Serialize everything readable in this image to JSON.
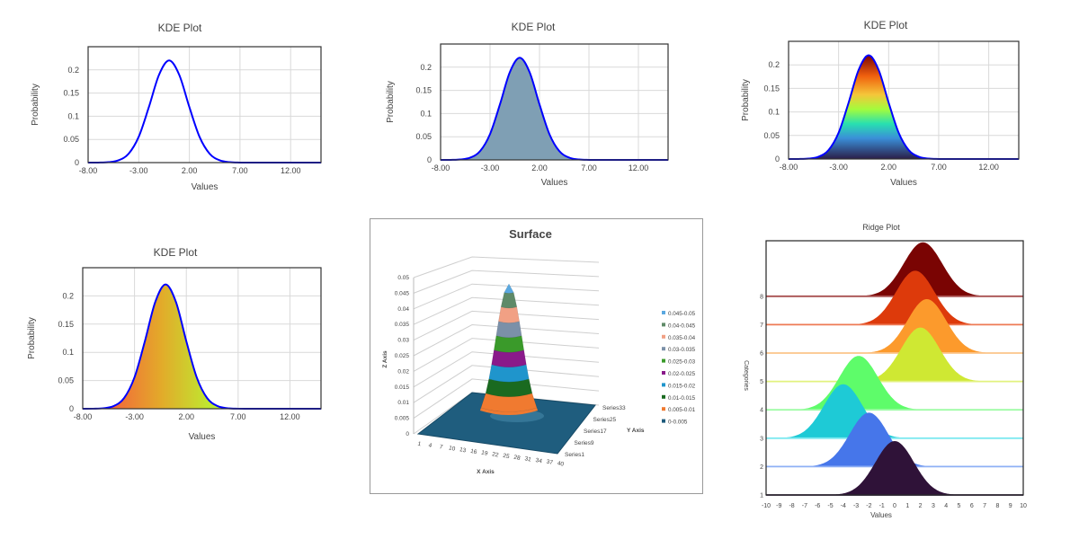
{
  "chart_data": [
    {
      "type": "line",
      "title": "KDE Plot",
      "xlabel": "Values",
      "ylabel": "Probability",
      "fill": "none",
      "line_color": "#0000ff",
      "grid": true,
      "xlim": [
        -8,
        15
      ],
      "ylim": [
        0,
        0.25
      ],
      "xticks": [
        "-8.00",
        "-3.00",
        "2.00",
        "7.00",
        "12.00"
      ],
      "yticks": [
        "0",
        "0.05",
        "0.1",
        "0.15",
        "0.2"
      ],
      "x": [
        -8,
        -7,
        -6,
        -5,
        -4,
        -3,
        -2,
        -1,
        0,
        1,
        2,
        3,
        4,
        5,
        6,
        7,
        8,
        9,
        10,
        11,
        12,
        13,
        14,
        15
      ],
      "y": [
        0,
        0.0001,
        0.0009,
        0.0049,
        0.0191,
        0.0558,
        0.1197,
        0.1892,
        0.2204,
        0.1892,
        0.1197,
        0.0558,
        0.0191,
        0.0049,
        0.0009,
        0.0001,
        0,
        0,
        0,
        0,
        0,
        0,
        0,
        0
      ]
    },
    {
      "type": "area",
      "title": "KDE Plot",
      "xlabel": "Values",
      "ylabel": "Probability",
      "fill": "solid",
      "fill_color": "#7f9fb4",
      "line_color": "#0000ff",
      "grid": true,
      "xlim": [
        -8,
        15
      ],
      "ylim": [
        0,
        0.25
      ],
      "xticks": [
        "-8.00",
        "-3.00",
        "2.00",
        "7.00",
        "12.00"
      ],
      "yticks": [
        "0",
        "0.05",
        "0.1",
        "0.15",
        "0.2"
      ],
      "x": [
        -8,
        -7,
        -6,
        -5,
        -4,
        -3,
        -2,
        -1,
        0,
        1,
        2,
        3,
        4,
        5,
        6,
        7,
        8,
        9,
        10,
        11,
        12,
        13,
        14,
        15
      ],
      "y": [
        0,
        0.0001,
        0.0009,
        0.0049,
        0.0191,
        0.0558,
        0.1197,
        0.1892,
        0.2204,
        0.1892,
        0.1197,
        0.0558,
        0.0191,
        0.0049,
        0.0009,
        0.0001,
        0,
        0,
        0,
        0,
        0,
        0,
        0,
        0
      ]
    },
    {
      "type": "area",
      "title": "KDE Plot",
      "xlabel": "Values",
      "ylabel": "Probability",
      "fill": "vertical-gradient",
      "gradient_colors": [
        "#7a0403",
        "#f0600e",
        "#f5c63a",
        "#a4fc3c",
        "#28e0b0",
        "#3a8fd8",
        "#2b1e48"
      ],
      "line_color": "#0000ff",
      "grid": true,
      "xlim": [
        -8,
        15
      ],
      "ylim": [
        0,
        0.25
      ],
      "xticks": [
        "-8.00",
        "-3.00",
        "2.00",
        "7.00",
        "12.00"
      ],
      "yticks": [
        "0",
        "0.05",
        "0.1",
        "0.15",
        "0.2"
      ],
      "x": [
        -8,
        -7,
        -6,
        -5,
        -4,
        -3,
        -2,
        -1,
        0,
        1,
        2,
        3,
        4,
        5,
        6,
        7,
        8,
        9,
        10,
        11,
        12,
        13,
        14,
        15
      ],
      "y": [
        0,
        0.0001,
        0.0009,
        0.0049,
        0.0191,
        0.0558,
        0.1197,
        0.1892,
        0.2204,
        0.1892,
        0.1197,
        0.0558,
        0.0191,
        0.0049,
        0.0009,
        0.0001,
        0,
        0,
        0,
        0,
        0,
        0,
        0,
        0
      ]
    },
    {
      "type": "area",
      "title": "KDE Plot",
      "xlabel": "Values",
      "ylabel": "Probability",
      "fill": "horizontal-gradient",
      "gradient_colors": [
        "#f26a3a",
        "#e3a92a",
        "#b9f231"
      ],
      "line_color": "#0000ff",
      "grid": true,
      "xlim": [
        -8,
        15
      ],
      "ylim": [
        0,
        0.25
      ],
      "xticks": [
        "-8.00",
        "-3.00",
        "2.00",
        "7.00",
        "12.00"
      ],
      "yticks": [
        "0",
        "0.05",
        "0.1",
        "0.15",
        "0.2"
      ],
      "x": [
        -8,
        -7,
        -6,
        -5,
        -4,
        -3,
        -2,
        -1,
        0,
        1,
        2,
        3,
        4,
        5,
        6,
        7,
        8,
        9,
        10,
        11,
        12,
        13,
        14,
        15
      ],
      "y": [
        0,
        0.0001,
        0.0009,
        0.0049,
        0.0191,
        0.0558,
        0.1197,
        0.1892,
        0.2204,
        0.1892,
        0.1197,
        0.0558,
        0.0191,
        0.0049,
        0.0009,
        0.0001,
        0,
        0,
        0,
        0,
        0,
        0,
        0,
        0
      ]
    },
    {
      "type": "surface",
      "title": "Surface",
      "xlabel": "X Axis",
      "ylabel": "Y Axis",
      "zlabel": "Z Axis",
      "zlim": [
        0,
        0.05
      ],
      "zticks": [
        "0",
        "0.005",
        "0.01",
        "0.015",
        "0.02",
        "0.025",
        "0.03",
        "0.035",
        "0.04",
        "0.045",
        "0.05"
      ],
      "xticks": [
        "1",
        "4",
        "7",
        "10",
        "13",
        "16",
        "19",
        "22",
        "25",
        "28",
        "31",
        "34",
        "37",
        "40"
      ],
      "yticks": [
        "Series1",
        "Series9",
        "Series17",
        "Series25",
        "Series33"
      ],
      "peak_z": 0.048,
      "legend": [
        {
          "label": "0.045-0.05",
          "color": "#5aa8e0"
        },
        {
          "label": "0.04-0.045",
          "color": "#5f8a68"
        },
        {
          "label": "0.035-0.04",
          "color": "#f1a084"
        },
        {
          "label": "0.03-0.035",
          "color": "#7b90a8"
        },
        {
          "label": "0.025-0.03",
          "color": "#3a9a2a"
        },
        {
          "label": "0.02-0.025",
          "color": "#8a1a8a"
        },
        {
          "label": "0.015-0.02",
          "color": "#1f95cc"
        },
        {
          "label": "0.01-0.015",
          "color": "#1a6a20"
        },
        {
          "label": "0.005-0.01",
          "color": "#f07a30"
        },
        {
          "label": "0-0.005",
          "color": "#1d5a7c"
        }
      ],
      "legend_placement": "right"
    },
    {
      "type": "ridge",
      "title": "Ridge Plot",
      "xlabel": "Values",
      "ylabel": "Categories",
      "xlim": [
        -10,
        10
      ],
      "xticks": [
        "-10",
        "-9",
        "-8",
        "-7",
        "-6",
        "-5",
        "-4",
        "-3",
        "-2",
        "-1",
        "0",
        "1",
        "2",
        "3",
        "4",
        "5",
        "6",
        "7",
        "8",
        "9",
        "10"
      ],
      "yticks": [
        "1",
        "2",
        "3",
        "4",
        "5",
        "6",
        "7",
        "8"
      ],
      "series": [
        {
          "category": "1",
          "mean": 0,
          "sd": 1.5,
          "color": "#2f1238",
          "line": "#3a2448"
        },
        {
          "category": "2",
          "mean": -2,
          "sd": 1.5,
          "color": "#4676ea",
          "line": "#8fb0f5"
        },
        {
          "category": "3",
          "mean": -4,
          "sd": 1.5,
          "color": "#1ecad6",
          "line": "#7ee9f0"
        },
        {
          "category": "4",
          "mean": -2.8,
          "sd": 1.5,
          "color": "#5efc6a",
          "line": "#9ffca6"
        },
        {
          "category": "5",
          "mean": 2,
          "sd": 1.5,
          "color": "#cfe833",
          "line": "#e2f27e"
        },
        {
          "category": "6",
          "mean": 2.5,
          "sd": 1.5,
          "color": "#fc9a2c",
          "line": "#fcc48a"
        },
        {
          "category": "7",
          "mean": 1.6,
          "sd": 1.5,
          "color": "#dd3a0b",
          "line": "#ee7a55"
        },
        {
          "category": "8",
          "mean": 2.2,
          "sd": 1.5,
          "color": "#7a0403",
          "line": "#a85050"
        }
      ]
    }
  ]
}
